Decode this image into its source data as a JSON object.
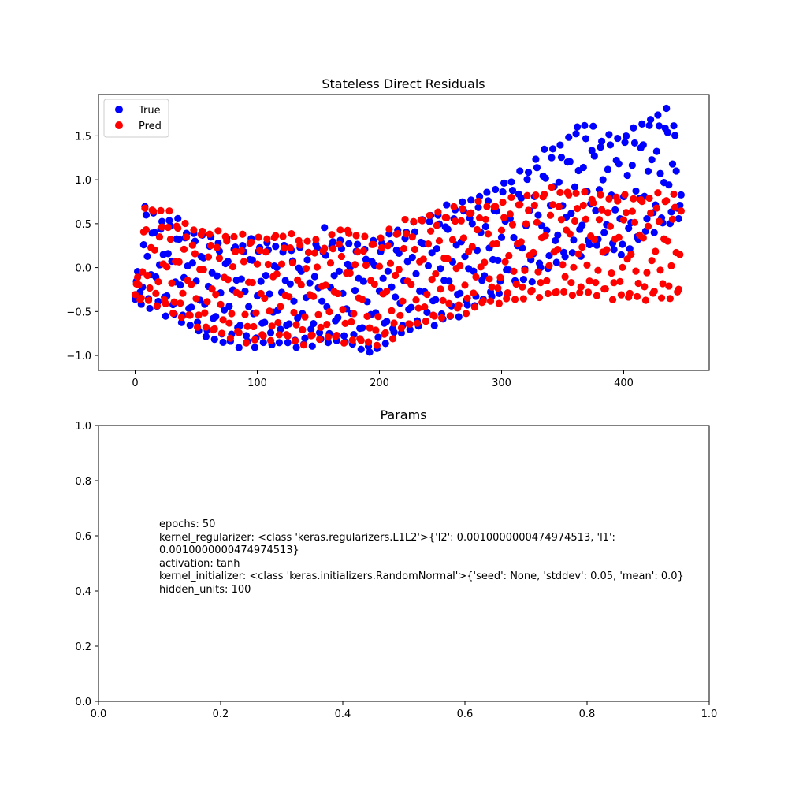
{
  "chart_data": [
    {
      "type": "scatter",
      "title": "Stateless Direct Residuals",
      "xlabel": "",
      "ylabel": "",
      "xlim": [
        -30,
        470
      ],
      "ylim": [
        -1.17,
        1.97
      ],
      "xticks": [
        0,
        100,
        200,
        300,
        400
      ],
      "yticks": [
        -1.0,
        -0.5,
        0.0,
        0.5,
        1.0,
        1.5
      ],
      "ytick_labels": [
        "−1.0",
        "−0.5",
        "0.0",
        "0.5",
        "1.0",
        "1.5"
      ],
      "legend": {
        "placement": "top-left",
        "entries": [
          "True",
          "Pred"
        ]
      },
      "series": [
        {
          "name": "True",
          "color": "#0000ff",
          "num_points": 448,
          "low_envelope": [
            [
              0,
              -0.42
            ],
            [
              10,
              -0.45
            ],
            [
              30,
              -0.55
            ],
            [
              40,
              -0.65
            ],
            [
              60,
              -0.8
            ],
            [
              80,
              -0.88
            ],
            [
              100,
              -0.9
            ],
            [
              120,
              -0.85
            ],
            [
              135,
              -0.95
            ],
            [
              150,
              -0.85
            ],
            [
              165,
              -0.85
            ],
            [
              180,
              -0.9
            ],
            [
              195,
              -1.0
            ],
            [
              205,
              -0.85
            ],
            [
              220,
              -0.75
            ],
            [
              240,
              -0.65
            ],
            [
              260,
              -0.58
            ],
            [
              280,
              -0.42
            ],
            [
              300,
              -0.32
            ],
            [
              320,
              -0.18
            ],
            [
              340,
              0.0
            ],
            [
              360,
              0.15
            ],
            [
              380,
              0.2
            ],
            [
              400,
              0.12
            ],
            [
              420,
              0.4
            ],
            [
              440,
              0.5
            ],
            [
              447,
              0.58
            ]
          ],
          "high_envelope": [
            [
              0,
              -0.3
            ],
            [
              8,
              0.75
            ],
            [
              20,
              0.5
            ],
            [
              30,
              0.62
            ],
            [
              40,
              0.45
            ],
            [
              60,
              0.35
            ],
            [
              80,
              0.3
            ],
            [
              100,
              0.3
            ],
            [
              120,
              0.25
            ],
            [
              140,
              0.18
            ],
            [
              155,
              0.42
            ],
            [
              170,
              0.3
            ],
            [
              190,
              0.25
            ],
            [
              205,
              0.35
            ],
            [
              220,
              0.45
            ],
            [
              240,
              0.6
            ],
            [
              260,
              0.7
            ],
            [
              280,
              0.82
            ],
            [
              300,
              0.95
            ],
            [
              320,
              1.1
            ],
            [
              335,
              1.35
            ],
            [
              350,
              1.42
            ],
            [
              365,
              1.68
            ],
            [
              380,
              1.52
            ],
            [
              400,
              1.5
            ],
            [
              420,
              1.7
            ],
            [
              440,
              1.85
            ],
            [
              447,
              0.9
            ]
          ]
        },
        {
          "name": "Pred",
          "color": "#ff0000",
          "num_points": 448,
          "low_envelope": [
            [
              0,
              -0.35
            ],
            [
              10,
              -0.4
            ],
            [
              30,
              -0.5
            ],
            [
              40,
              -0.6
            ],
            [
              60,
              -0.72
            ],
            [
              80,
              -0.82
            ],
            [
              100,
              -0.85
            ],
            [
              120,
              -0.8
            ],
            [
              135,
              -0.88
            ],
            [
              150,
              -0.82
            ],
            [
              165,
              -0.82
            ],
            [
              180,
              -0.85
            ],
            [
              195,
              -0.9
            ],
            [
              205,
              -0.82
            ],
            [
              220,
              -0.72
            ],
            [
              240,
              -0.62
            ],
            [
              260,
              -0.55
            ],
            [
              280,
              -0.45
            ],
            [
              300,
              -0.4
            ],
            [
              320,
              -0.35
            ],
            [
              340,
              -0.32
            ],
            [
              360,
              -0.3
            ],
            [
              380,
              -0.32
            ],
            [
              400,
              -0.35
            ],
            [
              420,
              -0.38
            ],
            [
              440,
              -0.35
            ],
            [
              447,
              -0.33
            ]
          ],
          "high_envelope": [
            [
              0,
              -0.3
            ],
            [
              8,
              0.7
            ],
            [
              20,
              0.67
            ],
            [
              30,
              0.6
            ],
            [
              40,
              0.48
            ],
            [
              60,
              0.42
            ],
            [
              80,
              0.38
            ],
            [
              100,
              0.35
            ],
            [
              120,
              0.4
            ],
            [
              140,
              0.35
            ],
            [
              155,
              0.28
            ],
            [
              170,
              0.5
            ],
            [
              190,
              0.32
            ],
            [
              205,
              0.38
            ],
            [
              220,
              0.52
            ],
            [
              240,
              0.6
            ],
            [
              260,
              0.68
            ],
            [
              280,
              0.72
            ],
            [
              300,
              0.75
            ],
            [
              320,
              0.8
            ],
            [
              335,
              0.88
            ],
            [
              350,
              0.9
            ],
            [
              365,
              0.85
            ],
            [
              380,
              0.82
            ],
            [
              400,
              0.82
            ],
            [
              420,
              0.82
            ],
            [
              440,
              0.84
            ],
            [
              447,
              0.82
            ]
          ]
        }
      ]
    },
    {
      "type": "text",
      "title": "Params",
      "xlim": [
        0.0,
        1.0
      ],
      "ylim": [
        0.0,
        1.0
      ],
      "xticks": [
        0.0,
        0.2,
        0.4,
        0.6,
        0.8,
        1.0
      ],
      "yticks": [
        0.0,
        0.2,
        0.4,
        0.6,
        0.8,
        1.0
      ],
      "text_anchor": [
        0.1,
        0.6
      ],
      "lines": [
        "epochs: 50",
        "kernel_regularizer: <class 'keras.regularizers.L1L2'>{'l2': 0.0010000000474974513, 'l1':",
        "0.0010000000474974513}",
        "activation: tanh",
        "kernel_initializer: <class 'keras.initializers.RandomNormal'>{'seed': None, 'stddev': 0.05, 'mean': 0.0}",
        "hidden_units: 100"
      ]
    }
  ]
}
